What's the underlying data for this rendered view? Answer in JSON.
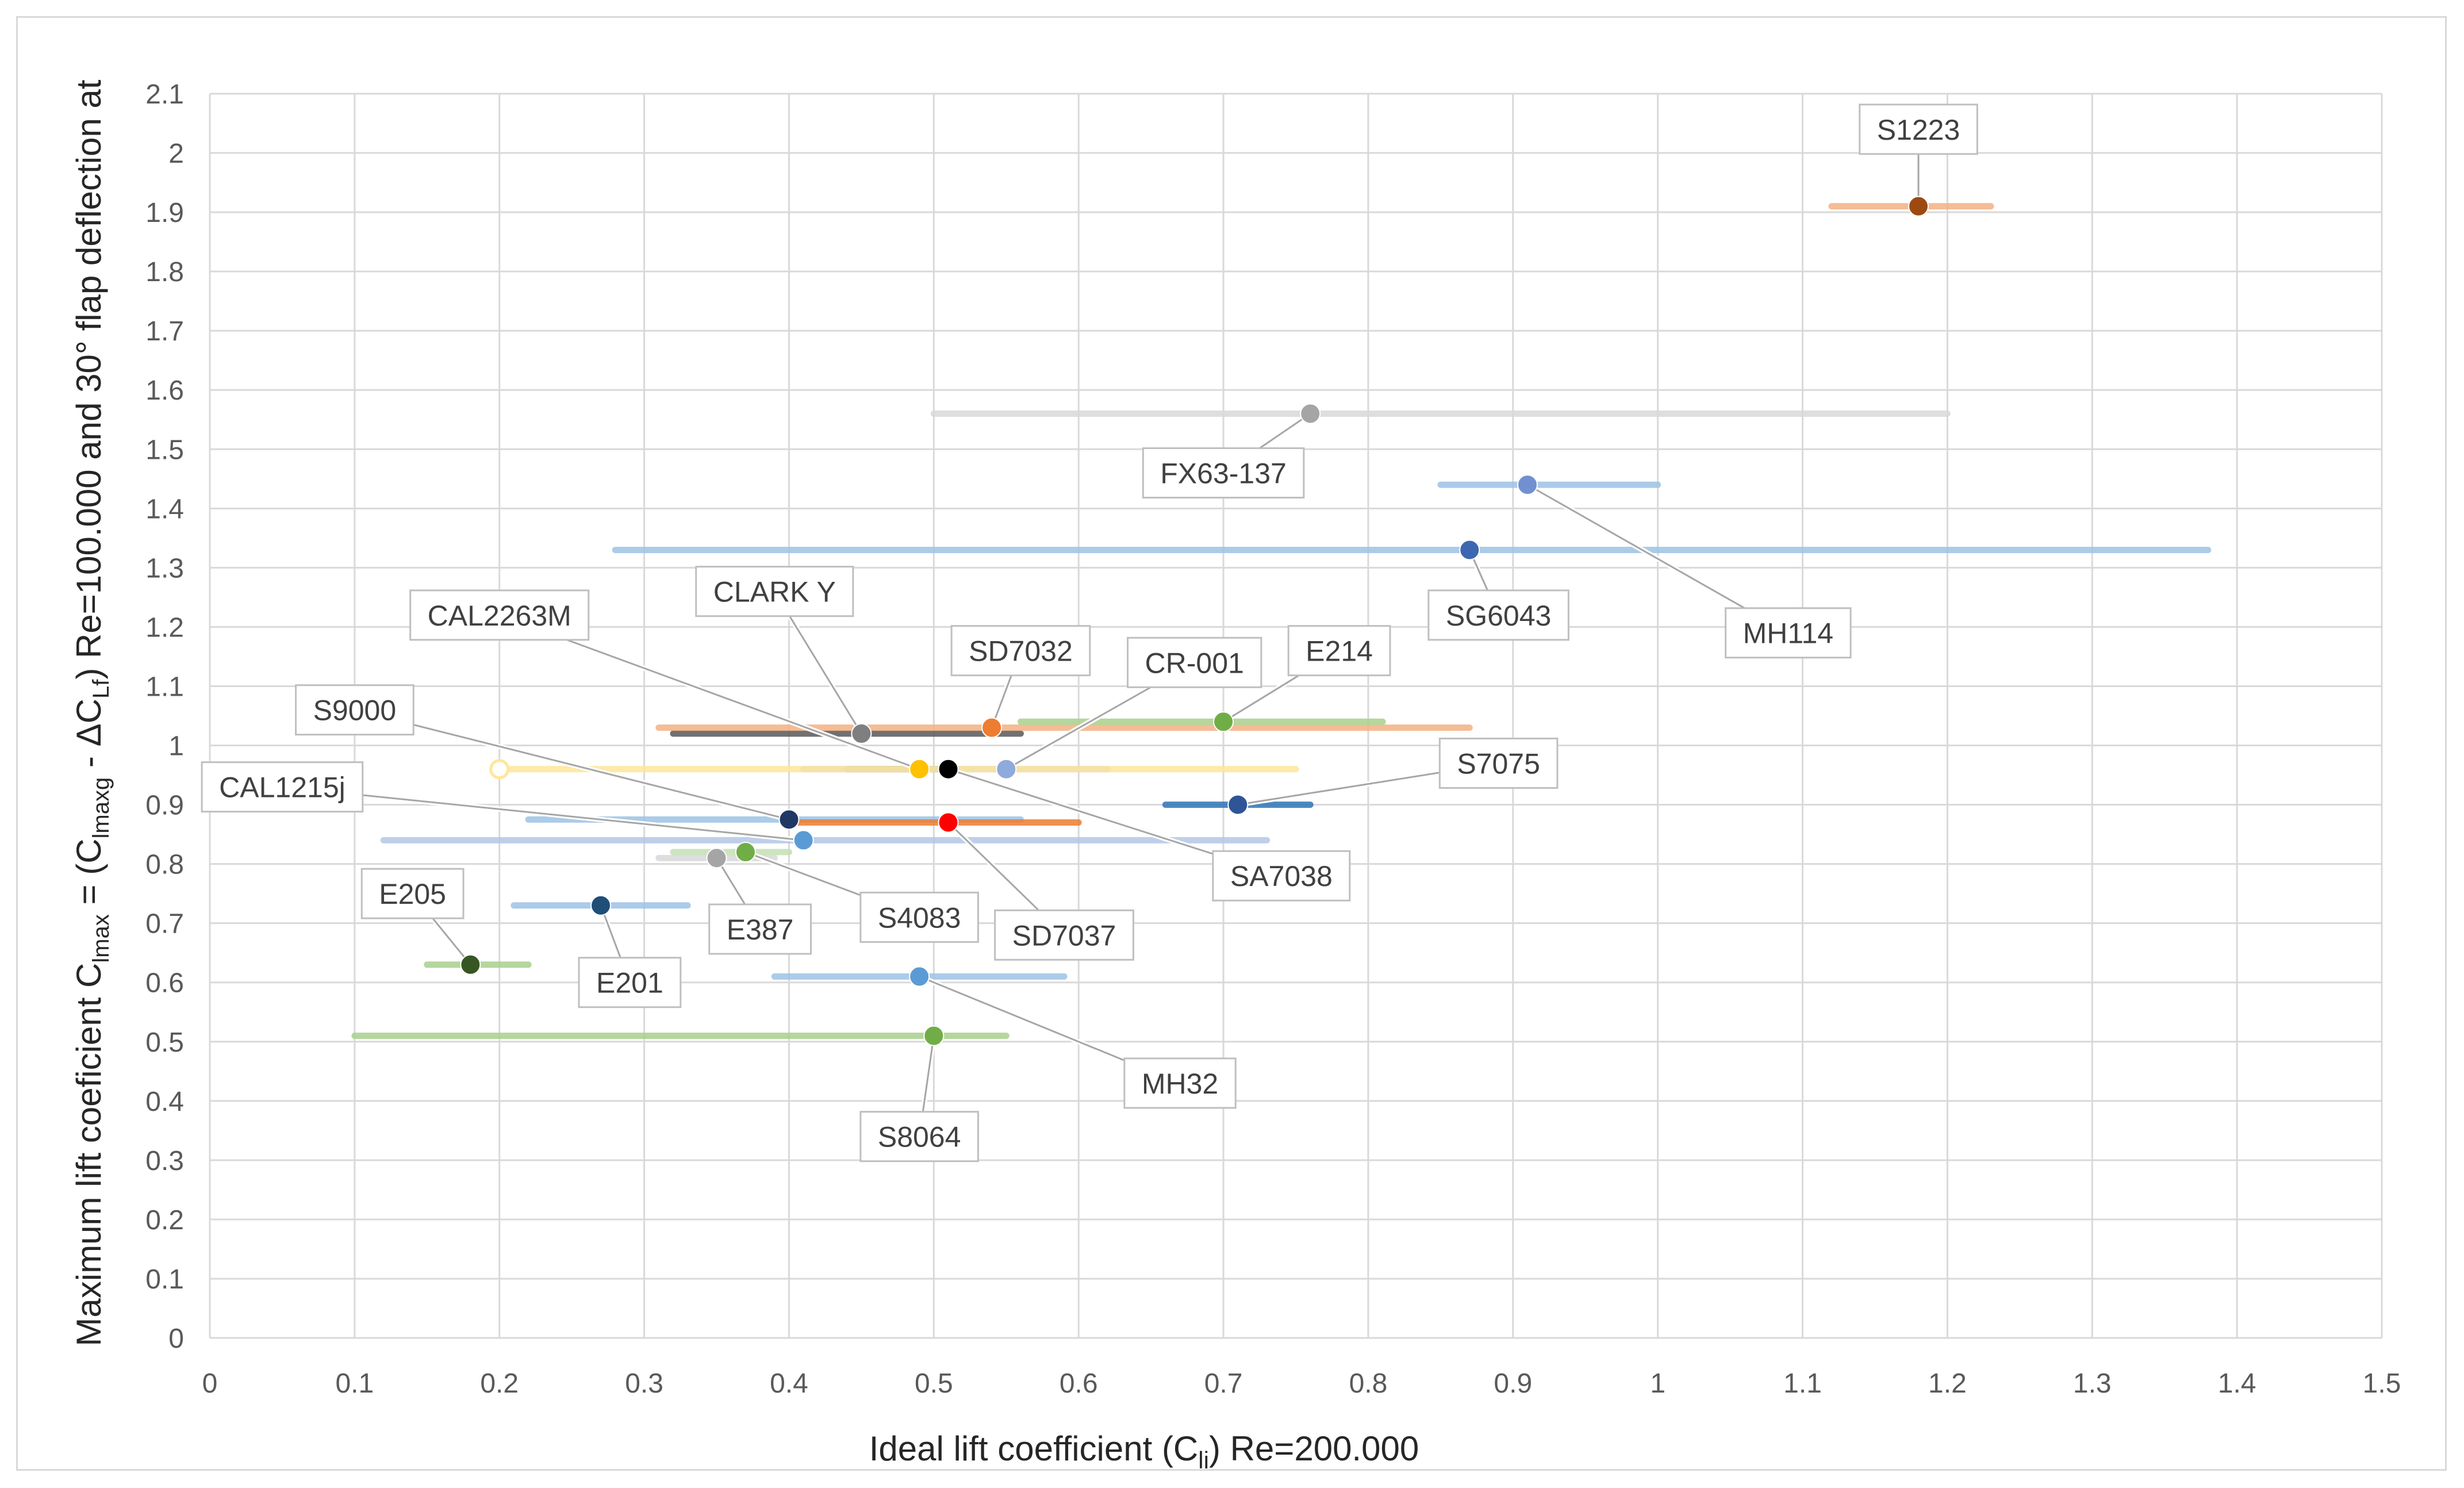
{
  "chart_data": {
    "type": "scatter",
    "xlabel_parts": [
      "Ideal lift coefficient (C",
      "li",
      ") Re=200.000"
    ],
    "ylabel_parts": [
      "Maximum lift coeficient C",
      "lmax",
      " = (C",
      "lmaxg",
      " - ΔC",
      "Lf",
      ")   Re=100.000 and 30° flap deflection at"
    ],
    "xlim": [
      0,
      1.5
    ],
    "ylim": [
      0,
      2.1
    ],
    "x_ticks": [
      "0",
      "0.1",
      "0.2",
      "0.3",
      "0.4",
      "0.5",
      "0.6",
      "0.7",
      "0.8",
      "0.9",
      "1",
      "1.1",
      "1.2",
      "1.3",
      "1.4",
      "1.5"
    ],
    "y_ticks": [
      "0",
      "0.1",
      "0.2",
      "0.3",
      "0.4",
      "0.5",
      "0.6",
      "0.7",
      "0.8",
      "0.9",
      "1",
      "1.1",
      "1.2",
      "1.3",
      "1.4",
      "1.5",
      "1.6",
      "1.7",
      "1.8",
      "1.9",
      "2",
      "2.1"
    ],
    "grid": true,
    "series": [
      {
        "name": "S1223",
        "x": 1.18,
        "y": 1.91,
        "range": [
          1.12,
          1.23
        ],
        "color": "#9c4a12",
        "bar_color": "#f4b183",
        "label_at": [
          1.18,
          2.04
        ]
      },
      {
        "name": "FX63-137",
        "x": 0.76,
        "y": 1.56,
        "range": [
          0.5,
          1.2
        ],
        "color": "#a5a5a5",
        "bar_color": "#d9d9d9",
        "label_at": [
          0.7,
          1.46
        ]
      },
      {
        "name": "MH114",
        "x": 0.91,
        "y": 1.44,
        "range": [
          0.85,
          1.0
        ],
        "color": "#7290cf",
        "bar_color": "#9dc3e6",
        "label_at": [
          1.09,
          1.19
        ]
      },
      {
        "name": "SG6043",
        "x": 0.87,
        "y": 1.33,
        "range": [
          0.28,
          1.38
        ],
        "color": "#3e67b1",
        "bar_color": "#9dc3e6",
        "label_at": [
          0.89,
          1.22
        ]
      },
      {
        "name": "CLARK Y",
        "x": 0.45,
        "y": 1.02,
        "range": [
          0.32,
          0.56
        ],
        "color": "#7f7f7f",
        "bar_color": "#595959",
        "label_at": [
          0.39,
          1.26
        ]
      },
      {
        "name": "SD7032",
        "x": 0.54,
        "y": 1.03,
        "range": [
          0.31,
          0.87
        ],
        "color": "#ed7d31",
        "bar_color": "#f4b183",
        "label_at": [
          0.56,
          1.16
        ]
      },
      {
        "name": "CAL2263M",
        "x": 0.49,
        "y": 0.96,
        "range": [
          0.44,
          0.51
        ],
        "color": "#ffc000",
        "bar_color": "#404040",
        "label_at": [
          0.2,
          1.22
        ]
      },
      {
        "name": "CR-001",
        "x": 0.55,
        "y": 0.96,
        "range": [
          0.41,
          0.62
        ],
        "color": "#8faadc",
        "bar_color": "#b4c7e7",
        "label_at": [
          0.68,
          1.14
        ]
      },
      {
        "name": "E214",
        "x": 0.7,
        "y": 1.04,
        "range": [
          0.56,
          0.81
        ],
        "color": "#70ad47",
        "bar_color": "#a9d18e",
        "label_at": [
          0.78,
          1.16
        ]
      },
      {
        "name": "S9000",
        "x": 0.4,
        "y": 0.875,
        "range": [
          0.22,
          0.56
        ],
        "color": "#203864",
        "bar_color": "#9dc3e6",
        "label_at": [
          0.1,
          1.06
        ]
      },
      {
        "name": "SA7038",
        "x": 0.51,
        "y": 0.96,
        "range": [
          0.2,
          0.75
        ],
        "color": "#000000",
        "bar_color": "#ffe699",
        "label_at": [
          0.74,
          0.78
        ]
      },
      {
        "name": "S7075",
        "x": 0.71,
        "y": 0.9,
        "range": [
          0.66,
          0.76
        ],
        "color": "#2f5597",
        "bar_color": "#2e75b6",
        "label_at": [
          0.89,
          0.97
        ]
      },
      {
        "name": "CAL1215j",
        "x": 0.41,
        "y": 0.84,
        "range": [
          0.12,
          0.73
        ],
        "color": "#5b9bd5",
        "bar_color": "#b4c7e7",
        "label_at": [
          0.05,
          0.93
        ]
      },
      {
        "name": "SD7037",
        "x": 0.51,
        "y": 0.87,
        "range": [
          0.4,
          0.6
        ],
        "color": "#ff0000",
        "bar_color": "#ed7d31",
        "label_at": [
          0.59,
          0.68
        ]
      },
      {
        "name": "S4083",
        "x": 0.37,
        "y": 0.82,
        "range": [
          0.32,
          0.4
        ],
        "color": "#70ad47",
        "bar_color": "#c5e0b4",
        "label_at": [
          0.49,
          0.71
        ]
      },
      {
        "name": "E387",
        "x": 0.35,
        "y": 0.81,
        "range": [
          0.31,
          0.39
        ],
        "color": "#a5a5a5",
        "bar_color": "#d9d9d9",
        "label_at": [
          0.38,
          0.69
        ]
      },
      {
        "name": "E205",
        "x": 0.18,
        "y": 0.63,
        "range": [
          0.15,
          0.22
        ],
        "color": "#375623",
        "bar_color": "#a9d18e",
        "label_at": [
          0.14,
          0.75
        ]
      },
      {
        "name": "E201",
        "x": 0.27,
        "y": 0.73,
        "range": [
          0.21,
          0.33
        ],
        "color": "#1f4e79",
        "bar_color": "#9dc3e6",
        "label_at": [
          0.29,
          0.6
        ]
      },
      {
        "name": "MH32",
        "x": 0.49,
        "y": 0.61,
        "range": [
          0.39,
          0.59
        ],
        "color": "#5b9bd5",
        "bar_color": "#9dc3e6",
        "label_at": [
          0.67,
          0.43
        ]
      },
      {
        "name": "S8064",
        "x": 0.5,
        "y": 0.51,
        "range": [
          0.1,
          0.55
        ],
        "color": "#70ad47",
        "bar_color": "#a9d18e",
        "label_at": [
          0.49,
          0.34
        ]
      },
      {
        "name": "",
        "x": 0.2,
        "y": 0.96,
        "range": [
          0.2,
          0.2
        ],
        "color": "#fff2cc",
        "bar_color": "#fff2cc",
        "hollow": true,
        "label_at": null
      }
    ]
  }
}
